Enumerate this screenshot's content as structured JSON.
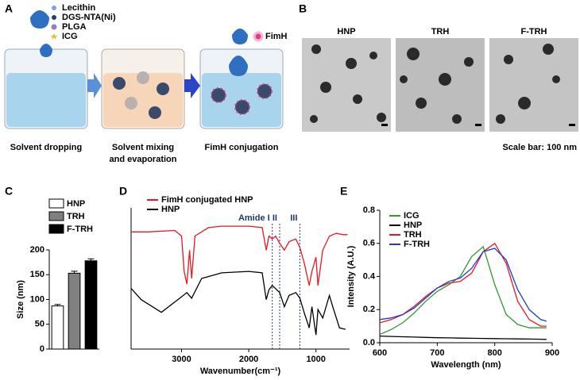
{
  "panel_labels": [
    "A",
    "B",
    "C",
    "D",
    "E"
  ],
  "panel_a": {
    "legend": [
      "Lecithin",
      "DGS-NTA(Ni)",
      "PLGA",
      "ICG"
    ],
    "fimh": "FimH",
    "captions": [
      "Solvent dropping",
      [
        "Solvent mixing",
        "and evaporation"
      ],
      "FimH conjugation"
    ]
  },
  "panel_b": {
    "image_labels": [
      "HNP",
      "TRH",
      "F-TRH"
    ],
    "scale_note": "Scale bar: 100 nm"
  },
  "chart_data": [
    {
      "type": "bar",
      "categories": [
        "HNP",
        "TRH",
        "F-TRH"
      ],
      "values": [
        87,
        153,
        178
      ],
      "errors": [
        3,
        4,
        4
      ],
      "colors": [
        "#ffffff",
        "#808080",
        "#000000"
      ],
      "ylabel": "Size (nm)",
      "ylim": [
        0,
        200
      ],
      "yticks": [
        0,
        50,
        100,
        150,
        200
      ]
    },
    {
      "type": "line",
      "xlabel": "Wavenumber(cm⁻¹)",
      "xlim": [
        3750,
        500
      ],
      "xticks": [
        3000,
        2000,
        1000
      ],
      "ylim": [
        0,
        100
      ],
      "annotations": [
        {
          "label": "Amide I",
          "x": 1650
        },
        {
          "label": "II",
          "x": 1540
        },
        {
          "label": "III",
          "x": 1240
        }
      ],
      "series": [
        {
          "name": "FimH conjugated HNP",
          "color": "#e8171f",
          "x": [
            3750,
            3500,
            3100,
            3000,
            2960,
            2920,
            2880,
            2850,
            2800,
            2600,
            2400,
            2000,
            1800,
            1740,
            1700,
            1650,
            1600,
            1540,
            1470,
            1400,
            1300,
            1240,
            1170,
            1100,
            1060,
            1000,
            970,
            900,
            800,
            700,
            600,
            530
          ],
          "values": [
            83,
            83,
            84,
            80,
            55,
            46,
            70,
            50,
            80,
            86,
            87,
            87,
            86,
            70,
            80,
            78,
            80,
            75,
            70,
            76,
            78,
            72,
            60,
            45,
            55,
            65,
            45,
            70,
            80,
            82,
            81,
            81
          ]
        },
        {
          "name": "HNP",
          "color": "#000000",
          "x": [
            3750,
            3600,
            3300,
            3000,
            2920,
            2850,
            2700,
            2400,
            2000,
            1800,
            1740,
            1700,
            1650,
            1540,
            1470,
            1400,
            1300,
            1240,
            1170,
            1100,
            1060,
            1000,
            970,
            900,
            800,
            750,
            650,
            560
          ],
          "values": [
            43,
            35,
            26,
            37,
            40,
            36,
            50,
            54,
            55,
            54,
            35,
            42,
            45,
            40,
            30,
            38,
            40,
            36,
            25,
            15,
            30,
            10,
            28,
            22,
            38,
            30,
            15,
            14
          ]
        }
      ]
    },
    {
      "type": "line",
      "xlabel": "Wavelength (nm)",
      "ylabel": "Intensity (A.U.)",
      "xlim": [
        600,
        900
      ],
      "xticks": [
        600,
        700,
        800,
        900
      ],
      "ylim": [
        0,
        0.8
      ],
      "yticks": [
        {
          "value": 0,
          "label": "0.0"
        },
        0.2,
        0.4,
        0.6,
        0.8
      ],
      "series": [
        {
          "name": "ICG",
          "color": "#2e9a2e",
          "x": [
            600,
            620,
            640,
            660,
            680,
            700,
            720,
            740,
            760,
            780,
            800,
            820,
            840,
            860,
            880,
            890
          ],
          "values": [
            0.05,
            0.08,
            0.12,
            0.18,
            0.25,
            0.31,
            0.35,
            0.4,
            0.52,
            0.58,
            0.35,
            0.17,
            0.11,
            0.09,
            0.09,
            0.09
          ]
        },
        {
          "name": "HNP",
          "color": "#000000",
          "x": [
            600,
            620,
            640,
            660,
            680,
            700,
            720,
            740,
            760,
            780,
            800,
            820,
            840,
            860,
            880,
            890
          ],
          "values": [
            0.04,
            0.038,
            0.036,
            0.034,
            0.032,
            0.03,
            0.029,
            0.028,
            0.027,
            0.026,
            0.025,
            0.024,
            0.023,
            0.022,
            0.021,
            0.02
          ]
        },
        {
          "name": "TRH",
          "color": "#e8171f",
          "x": [
            600,
            620,
            640,
            660,
            680,
            700,
            720,
            740,
            760,
            780,
            800,
            820,
            840,
            860,
            880,
            890
          ],
          "values": [
            0.12,
            0.14,
            0.17,
            0.22,
            0.28,
            0.33,
            0.36,
            0.37,
            0.42,
            0.55,
            0.6,
            0.48,
            0.25,
            0.14,
            0.1,
            0.1
          ]
        },
        {
          "name": "F-TRH",
          "color": "#1f3bd6",
          "x": [
            600,
            620,
            640,
            660,
            680,
            700,
            720,
            740,
            760,
            780,
            800,
            820,
            840,
            860,
            880,
            890
          ],
          "values": [
            0.14,
            0.15,
            0.17,
            0.21,
            0.27,
            0.33,
            0.37,
            0.39,
            0.45,
            0.55,
            0.57,
            0.5,
            0.32,
            0.2,
            0.14,
            0.13
          ]
        }
      ]
    }
  ]
}
